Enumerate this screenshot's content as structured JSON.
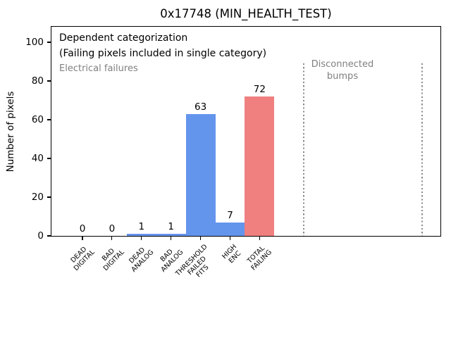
{
  "chart_data": {
    "type": "bar",
    "title": "0x17748 (MIN_HEALTH_TEST)",
    "ylabel": "Number of pixels",
    "xlabel": "",
    "categories": [
      "DEAD\nDIGITAL",
      "BAD\nDIGITAL",
      "DEAD\nANALOG",
      "BAD\nANALOG",
      "THRESHOLD\nFAILED\nFITS",
      "HIGH\nENC",
      "TOTAL\nFAILING"
    ],
    "values": [
      0,
      0,
      1,
      1,
      63,
      7,
      72
    ],
    "bar_labels": [
      "0",
      "0",
      "1",
      "1",
      "63",
      "7",
      "72"
    ],
    "bar_colors": [
      "#6495ed",
      "#6495ed",
      "#6495ed",
      "#6495ed",
      "#6495ed",
      "#6495ed",
      "#f08080"
    ],
    "yticks": [
      0,
      20,
      40,
      60,
      80,
      100
    ],
    "ylim": [
      0,
      108
    ],
    "grid": false,
    "legend_position": "none",
    "annotations": {
      "dependent": "Dependent categorization\n(Failing pixels included in single category)",
      "electrical": "Electrical failures",
      "disconnected": "Disconnected\nbumps"
    },
    "vlines": {
      "x_data": [
        7.5,
        11.5
      ],
      "ymax_data": 89,
      "style": "dotted",
      "color": "#8a8a8a"
    },
    "text_colors": {
      "primary": "#000000",
      "secondary": "#808080"
    }
  }
}
